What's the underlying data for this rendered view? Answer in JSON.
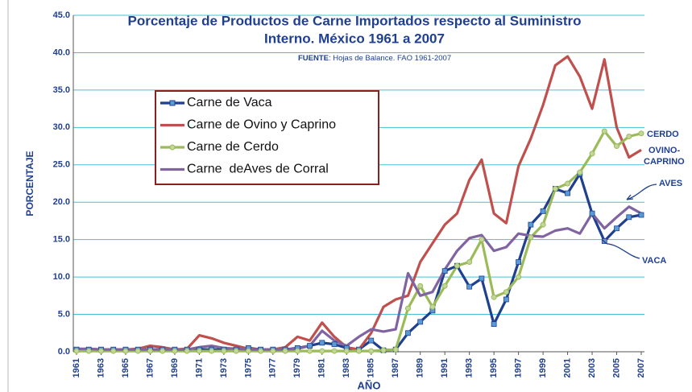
{
  "chart_data": {
    "type": "line",
    "title": [
      "Porcentaje de Productos de Carne Importados respecto al Suministro",
      "Interno.  México 1961 a 2007"
    ],
    "source_label": "FUENTE",
    "source": ": Hojas de Balance. FAO 1961-2007",
    "ylabel": "PORCENTAJE",
    "xlabel": "AÑO",
    "x": [
      1961,
      1962,
      1963,
      1964,
      1965,
      1966,
      1967,
      1968,
      1969,
      1970,
      1971,
      1972,
      1973,
      1974,
      1975,
      1976,
      1977,
      1978,
      1979,
      1980,
      1981,
      1982,
      1983,
      1984,
      1985,
      1986,
      1987,
      1988,
      1989,
      1990,
      1991,
      1992,
      1993,
      1994,
      1995,
      1996,
      1997,
      1998,
      1999,
      2000,
      2001,
      2002,
      2003,
      2004,
      2005,
      2006,
      2007
    ],
    "series": [
      {
        "name": "Carne de Vaca",
        "color": "#1f3f8f",
        "marker": "square",
        "marker_color": "#5b9bd5",
        "values": [
          0.3,
          0.3,
          0.3,
          0.3,
          0.3,
          0.3,
          0.3,
          0.3,
          0.3,
          0.3,
          0.3,
          0.3,
          0.3,
          0.3,
          0.5,
          0.3,
          0.3,
          0.3,
          0.5,
          0.8,
          1.2,
          1.0,
          0.5,
          0.3,
          1.5,
          0.2,
          0.3,
          2.5,
          4.0,
          5.5,
          10.8,
          11.5,
          8.7,
          9.8,
          3.7,
          7.0,
          12.0,
          17.0,
          18.8,
          21.8,
          21.2,
          23.8,
          18.5,
          14.8,
          16.5,
          18.0,
          18.3
        ]
      },
      {
        "name": "Carne de Ovino y Caprino",
        "color": "#c0504d",
        "marker": "none",
        "values": [
          0.3,
          0.4,
          0.3,
          0.3,
          0.3,
          0.4,
          0.8,
          0.6,
          0.3,
          0.4,
          2.2,
          1.8,
          1.2,
          0.8,
          0.4,
          0.3,
          0.3,
          0.6,
          2.0,
          1.5,
          3.9,
          2.0,
          0.6,
          0.3,
          2.5,
          6.0,
          7.0,
          7.5,
          12.0,
          14.5,
          17.0,
          18.5,
          23.0,
          25.7,
          18.5,
          17.2,
          24.8,
          28.5,
          33.0,
          38.3,
          39.5,
          36.8,
          32.5,
          39.1,
          30.0,
          26.0,
          27.0
        ]
      },
      {
        "name": "Carne de Cerdo",
        "color": "#9bbb59",
        "marker": "circle",
        "marker_color": "#c3d69b",
        "values": [
          0.1,
          0.1,
          0.1,
          0.1,
          0.1,
          0.1,
          0.1,
          0.1,
          0.1,
          0.1,
          0.1,
          0.1,
          0.1,
          0.1,
          0.1,
          0.1,
          0.1,
          0.1,
          0.1,
          0.1,
          0.1,
          0.1,
          0.1,
          0.1,
          0.1,
          0.2,
          0.3,
          5.8,
          8.8,
          6.0,
          8.8,
          11.5,
          12.0,
          15.0,
          7.3,
          8.0,
          10.0,
          15.3,
          17.0,
          21.8,
          22.5,
          24.0,
          26.5,
          29.5,
          27.5,
          28.8,
          29.2
        ]
      },
      {
        "name": "Carne  deAves de Corral",
        "color": "#8064a2",
        "marker": "none",
        "values": [
          0.4,
          0.4,
          0.3,
          0.3,
          0.3,
          0.3,
          0.3,
          0.3,
          0.3,
          0.3,
          0.6,
          0.8,
          0.5,
          0.4,
          0.3,
          0.3,
          0.3,
          0.3,
          0.4,
          0.8,
          2.8,
          1.5,
          0.8,
          2.0,
          3.0,
          2.7,
          3.0,
          10.5,
          7.5,
          8.0,
          11.0,
          13.5,
          15.2,
          15.6,
          13.5,
          14.0,
          15.8,
          15.5,
          15.4,
          16.2,
          16.5,
          15.8,
          18.5,
          16.5,
          18.0,
          19.4,
          18.5
        ]
      }
    ],
    "annotations": [
      "CERDO",
      "OVINO-",
      "CAPRINO",
      "AVES",
      "VACA"
    ],
    "xlim": [
      1961,
      2007
    ],
    "xticks": [
      1961,
      1963,
      1965,
      1967,
      1969,
      1971,
      1973,
      1975,
      1977,
      1979,
      1981,
      1983,
      1985,
      1987,
      1989,
      1991,
      1993,
      1995,
      1997,
      1999,
      2001,
      2003,
      2005,
      2007
    ],
    "ylim": [
      0,
      45
    ],
    "yticks": [
      {
        "value": 0,
        "label": "0.0"
      },
      {
        "value": 5,
        "label": "5.0"
      },
      {
        "value": 10,
        "label": "10.0"
      },
      {
        "value": 15,
        "label": "15.0"
      },
      {
        "value": 20,
        "label": "20.0"
      },
      {
        "value": 25,
        "label": "25.0"
      },
      {
        "value": 30,
        "label": "30.0"
      },
      {
        "value": 35,
        "label": "35.0"
      },
      {
        "value": 40,
        "label": "40.0"
      },
      {
        "value": 45,
        "label": "45.0"
      }
    ],
    "grid": true
  }
}
